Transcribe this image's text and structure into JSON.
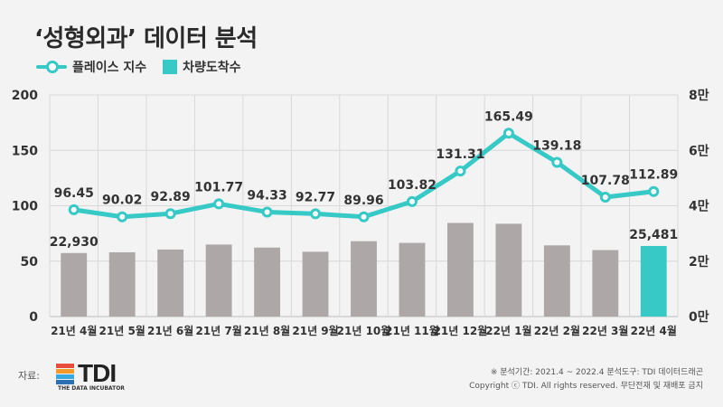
{
  "title": "‘성형외과’ 데이터 분석",
  "legend": {
    "line_label": "플레이스 지수",
    "bar_label": "차량도착수"
  },
  "footer": {
    "source_label": "자료:",
    "logo_text": "TDI",
    "logo_sub": "THE DATA INCUBATOR",
    "period": "※ 분석기간: 2021.4 ~ 2022.4   분석도구: TDI 데이터드래곤",
    "copyright": "Copyright ⓒ TDI. All rights reserved. 무단전재 및 재배포 금지"
  },
  "colors": {
    "line": "#36c9c6",
    "bar": "#ada7a7",
    "bar_highlight": "#36c9c6",
    "grid": "#d8d8d8",
    "logo_stripes": [
      "#e94e3c",
      "#f39c2b",
      "#36a9e0",
      "#2c6fb5"
    ]
  },
  "chart_data": {
    "type": "bar+line",
    "categories": [
      "21년 4월",
      "21년 5월",
      "21년 6월",
      "21년 7월",
      "21년 8월",
      "21년 9월",
      "21년 10월",
      "21년 11월",
      "21년 12월",
      "22년 1월",
      "22년 2월",
      "22년 3월",
      "22년 4월"
    ],
    "series": [
      {
        "name": "플레이스 지수",
        "type": "line",
        "axis": "left",
        "values": [
          96.45,
          90.02,
          92.89,
          101.77,
          94.33,
          92.77,
          89.96,
          103.82,
          131.31,
          165.49,
          139.18,
          107.78,
          112.89
        ]
      },
      {
        "name": "차량도착수",
        "type": "bar",
        "axis": "right",
        "values": [
          22930,
          23200,
          24200,
          26000,
          24900,
          23400,
          27200,
          26600,
          33800,
          33500,
          25700,
          24000,
          25481
        ],
        "labels": [
          "22,930",
          "",
          "",
          "",
          "",
          "",
          "",
          "",
          "",
          "",
          "",
          "",
          "25,481"
        ],
        "highlight_index": 12
      }
    ],
    "y_left": {
      "ticks": [
        "0",
        "50",
        "100",
        "150",
        "200"
      ],
      "lim": [
        0,
        200
      ]
    },
    "y_right": {
      "ticks": [
        "0만",
        "2만",
        "4만",
        "6만",
        "8만"
      ],
      "lim": [
        0,
        80000
      ]
    },
    "grid": true
  }
}
